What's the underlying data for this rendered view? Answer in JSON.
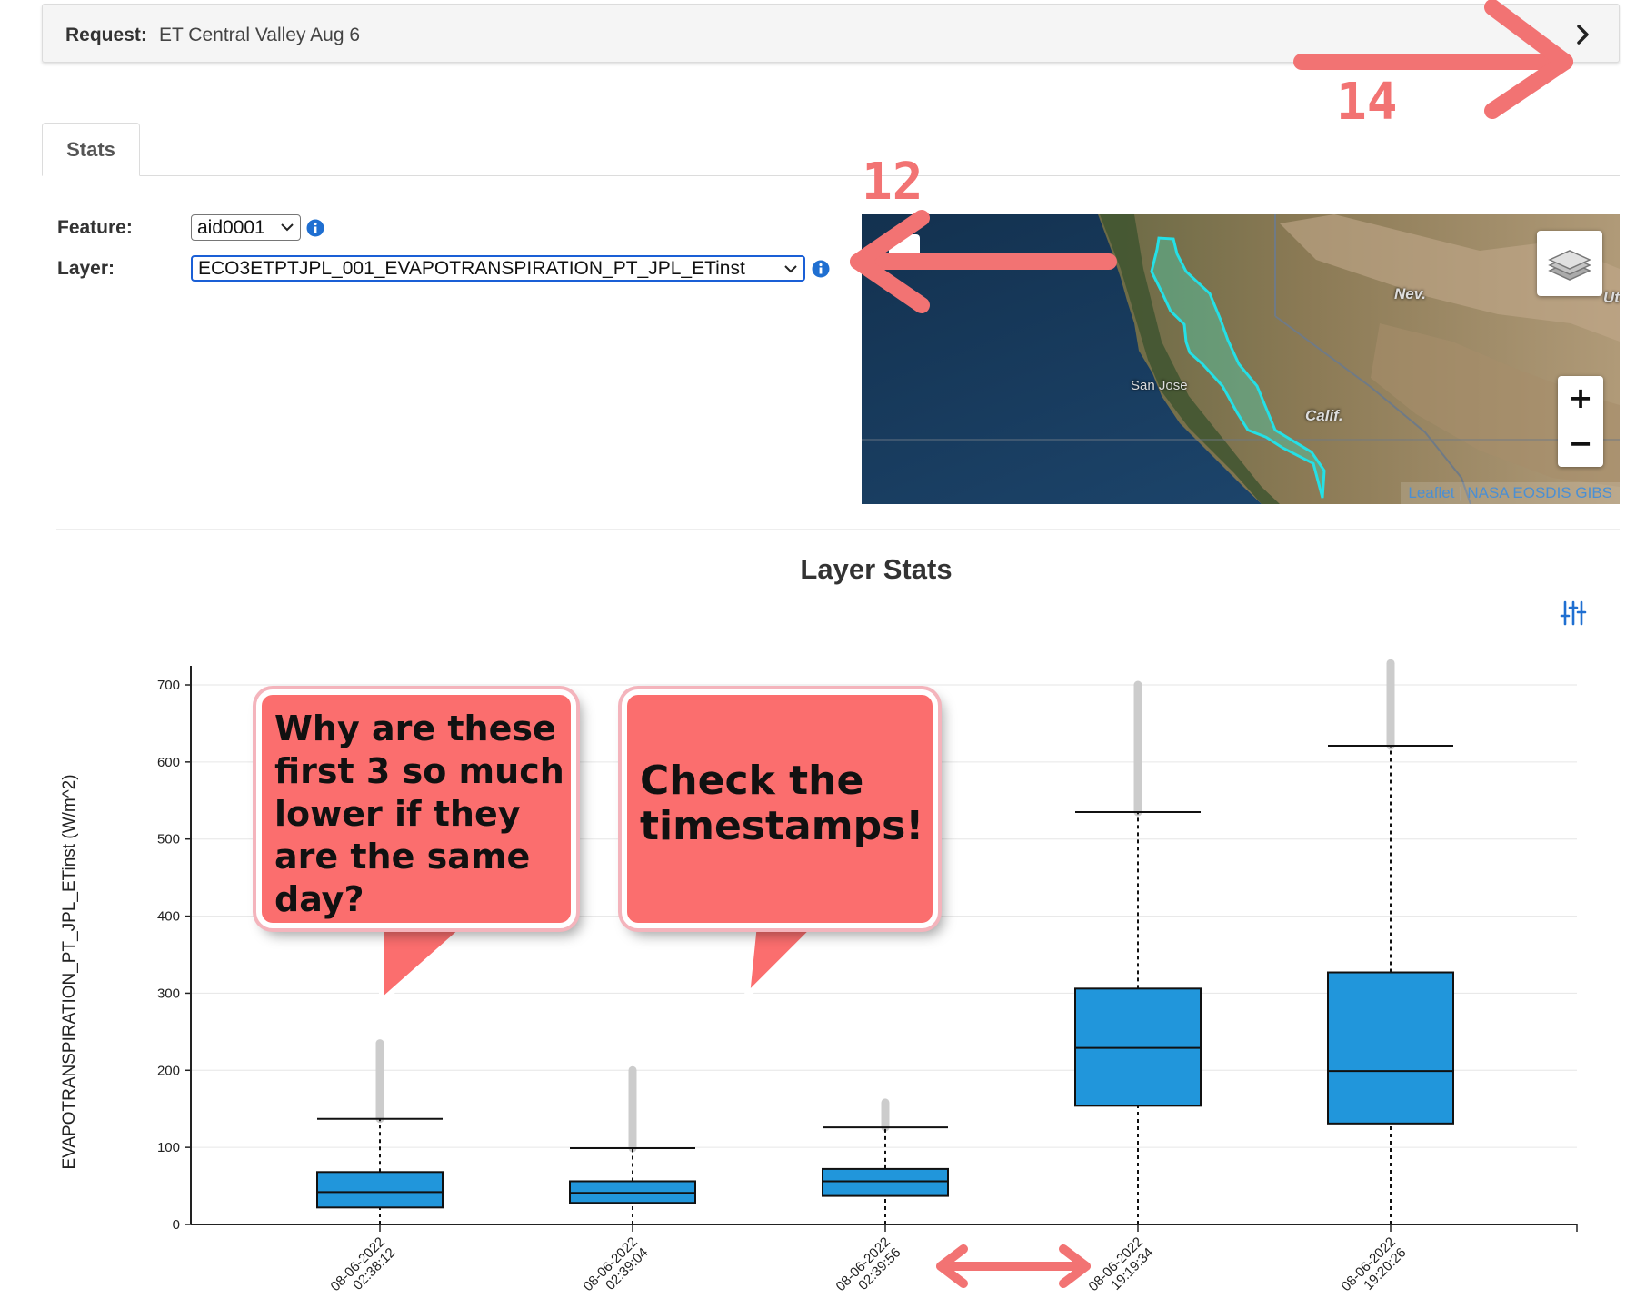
{
  "request": {
    "label": "Request:",
    "value": "ET Central Valley Aug 6"
  },
  "tabs": [
    {
      "label": "Stats",
      "active": true
    }
  ],
  "form": {
    "feature_label": "Feature:",
    "feature_value": "aid0001",
    "layer_label": "Layer:",
    "layer_value": "ECO3ETPTJPL_001_EVAPOTRANSPIRATION_PT_JPL_ETinst"
  },
  "map": {
    "labels": {
      "nev": "Nev.",
      "calif": "Calif.",
      "san_jose": "San Jose",
      "ut": "Ut"
    },
    "zoom_in": "+",
    "zoom_out": "−",
    "attribution": {
      "leaflet": "Leaflet",
      "separator": "|",
      "gibs": "NASA EOSDIS GIBS"
    }
  },
  "annotations": {
    "number_12": "12",
    "number_14": "14",
    "bubble_1": [
      "Why are these",
      "first 3 so much",
      "lower if they",
      "are the same",
      "day?"
    ],
    "bubble_2": [
      "Check the",
      "timestamps!"
    ]
  },
  "chart_data": {
    "type": "box",
    "title": "Layer Stats",
    "xlabel": "",
    "ylabel": "EVAPOTRANSPIRATION_PT_JPL_ETinst (W/m^2)",
    "ylim": [
      0,
      730
    ],
    "yticks": [
      0,
      100,
      200,
      300,
      400,
      500,
      600,
      700
    ],
    "grid": true,
    "categories": [
      "08-06-2022 02:38:12",
      "08-06-2022 02:39:04",
      "08-06-2022 02:39:56",
      "08-06-2022 19:19:34",
      "08-06-2022 19:20:26"
    ],
    "boxes": [
      {
        "min": 0,
        "q1": 22,
        "median": 42,
        "q3": 68,
        "whisker_high": 137,
        "outliers_max": 235
      },
      {
        "min": 0,
        "q1": 28,
        "median": 41,
        "q3": 56,
        "whisker_high": 99,
        "outliers_max": 200
      },
      {
        "min": 0,
        "q1": 37,
        "median": 56,
        "q3": 72,
        "whisker_high": 126,
        "outliers_max": 158
      },
      {
        "min": 0,
        "q1": 154,
        "median": 229,
        "q3": 306,
        "whisker_high": 535,
        "outliers_max": 700
      },
      {
        "min": 0,
        "q1": 131,
        "median": 199,
        "q3": 327,
        "whisker_high": 621,
        "outliers_max": 728
      }
    ],
    "colors": {
      "box": "#2196db",
      "outlier": "#cccccc",
      "grid": "#e6e6e6"
    }
  }
}
